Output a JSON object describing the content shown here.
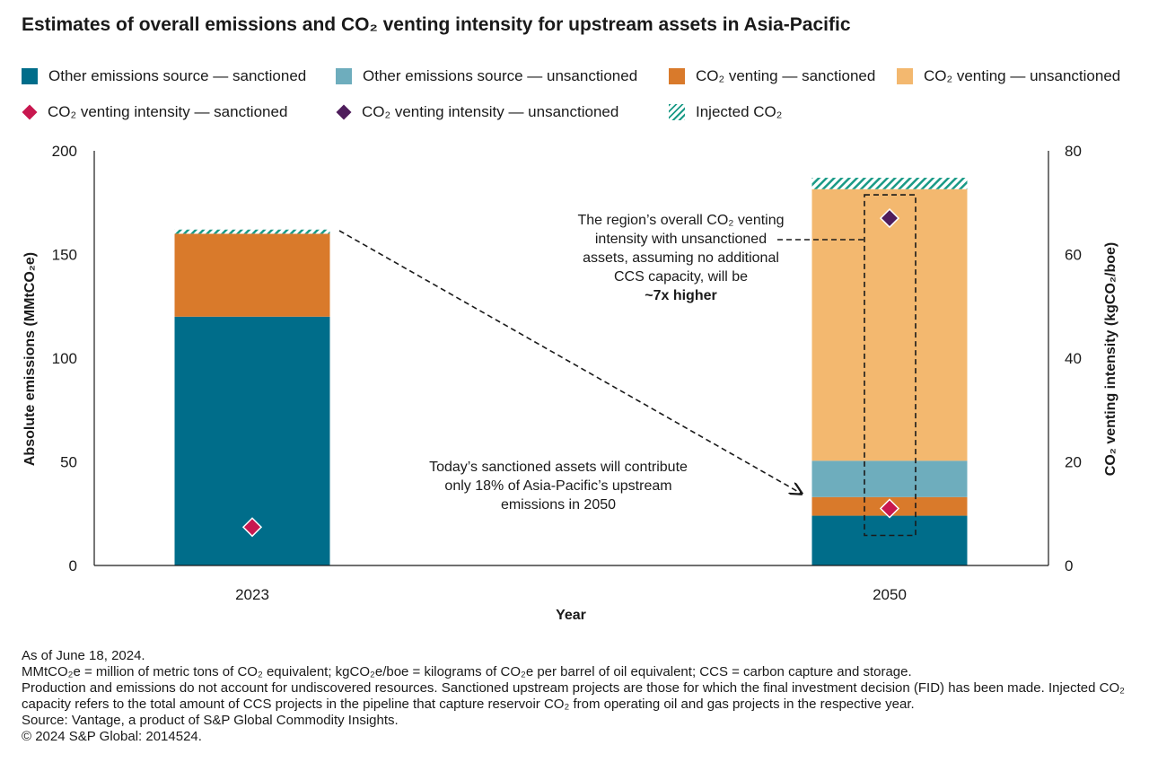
{
  "title": "Estimates of overall emissions and CO₂ venting intensity for upstream assets in Asia-Pacific",
  "legend": [
    {
      "label": "Other emissions source — sanctioned",
      "kind": "square",
      "color": "#006d8a"
    },
    {
      "label": "Other emissions source — unsanctioned",
      "kind": "square",
      "color": "#6eadbd"
    },
    {
      "label": "CO₂ venting — sanctioned",
      "kind": "square",
      "color": "#d97a2b"
    },
    {
      "label": "CO₂ venting — unsanctioned",
      "kind": "square",
      "color": "#f3b86f"
    },
    {
      "label": "CO₂ venting intensity — sanctioned",
      "kind": "diamond",
      "color": "#c8174f"
    },
    {
      "label": "CO₂ venting intensity — unsanctioned",
      "kind": "diamond",
      "color": "#4f1d5c"
    },
    {
      "label": "Injected CO₂",
      "kind": "hatch",
      "color": "#1a9a86"
    }
  ],
  "annotations": {
    "a1": "The region’s overall CO₂ venting intensity with unsanctioned assets, assuming no additional CCS capacity, will be",
    "a1_bold": "~7x higher",
    "a2": "Today’s sanctioned assets will contribute only 18% of Asia-Pacific’s upstream emissions in 2050"
  },
  "footnotes": [
    "As of June 18, 2024.",
    "MMtCO₂e = million of metric tons of CO₂ equivalent; kgCO₂e/boe = kilograms of CO₂e per barrel of oil equivalent; CCS = carbon capture and storage.",
    "Production and emissions do not account for undiscovered resources. Sanctioned upstream projects are those for which the final investment decision (FID) has been made. Injected CO₂ capacity refers to the total amount of CCS projects in the pipeline that capture reservoir CO₂ from operating oil and gas projects in the respective year.",
    "Source: Vantage, a product of S&P Global Commodity Insights.",
    "© 2024 S&P Global: 2014524."
  ],
  "chart_data": {
    "type": "bar",
    "stacked": true,
    "categories": [
      "2023",
      "2050"
    ],
    "xlabel": "Year",
    "ylabel": "Absolute emissions (MMtCO₂e)",
    "y2label": "CO₂ venting intensity (kgCO₂/boe)",
    "ylim": [
      0,
      200
    ],
    "y2lim": [
      0,
      80
    ],
    "yticks": [
      0,
      50,
      100,
      150,
      200
    ],
    "y2ticks": [
      0,
      20,
      40,
      60,
      80
    ],
    "grid": false,
    "legend_position": "top",
    "series": [
      {
        "name": "Other emissions source — sanctioned",
        "values": [
          120,
          24
        ],
        "color": "#006d8a"
      },
      {
        "name": "CO₂ venting — sanctioned",
        "values": [
          40,
          9
        ],
        "color": "#d97a2b"
      },
      {
        "name": "Other emissions source — unsanctioned",
        "values": [
          0,
          17.5
        ],
        "color": "#6eadbd"
      },
      {
        "name": "CO₂ venting — unsanctioned",
        "values": [
          0,
          131
        ],
        "color": "#f3b86f"
      },
      {
        "name": "Injected CO₂",
        "values": [
          2,
          5.5
        ],
        "color": "#1a9a86",
        "pattern": "hatch"
      }
    ],
    "intensity": [
      {
        "name": "CO₂ venting intensity — sanctioned",
        "axis": "right",
        "values": [
          7.4,
          11
        ],
        "color": "#c8174f"
      },
      {
        "name": "CO₂ venting intensity — unsanctioned",
        "axis": "right",
        "values": [
          null,
          67
        ],
        "color": "#4f1d5c"
      }
    ]
  }
}
